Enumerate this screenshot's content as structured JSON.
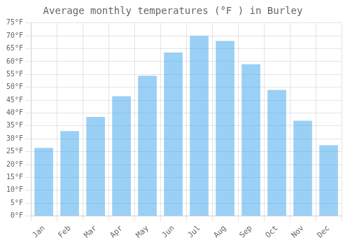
{
  "chart_data": {
    "type": "bar",
    "title": "Average monthly temperatures (°F ) in Burley",
    "categories": [
      "Jan",
      "Feb",
      "Mar",
      "Apr",
      "May",
      "Jun",
      "Jul",
      "Aug",
      "Sep",
      "Oct",
      "Nov",
      "Dec"
    ],
    "values": [
      26.5,
      33.0,
      38.5,
      46.5,
      54.5,
      63.5,
      70.0,
      68.0,
      59.0,
      49.0,
      37.0,
      27.5
    ],
    "ylim": [
      0,
      75
    ],
    "yticks": [
      {
        "value": 0,
        "label": "0°F"
      },
      {
        "value": 5,
        "label": "5°F"
      },
      {
        "value": 10,
        "label": "10°F"
      },
      {
        "value": 15,
        "label": "15°F"
      },
      {
        "value": 20,
        "label": "20°F"
      },
      {
        "value": 25,
        "label": "25°F"
      },
      {
        "value": 30,
        "label": "30°F"
      },
      {
        "value": 35,
        "label": "35°F"
      },
      {
        "value": 40,
        "label": "40°F"
      },
      {
        "value": 45,
        "label": "45°F"
      },
      {
        "value": 50,
        "label": "50°F"
      },
      {
        "value": 55,
        "label": "55°F"
      },
      {
        "value": 60,
        "label": "60°F"
      },
      {
        "value": 65,
        "label": "65°F"
      },
      {
        "value": 70,
        "label": "70°F"
      },
      {
        "value": 75,
        "label": "75°F"
      }
    ],
    "grid": true
  }
}
